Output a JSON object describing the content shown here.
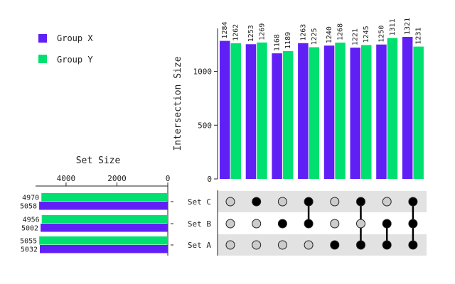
{
  "chart_data": {
    "type": "upset",
    "colors": {
      "group_x": "#6020f5",
      "group_y": "#00e070",
      "dot_active": "#000000",
      "dot_inactive": "#cccccc",
      "stripe": "#e2e2e2"
    },
    "legend": {
      "placement": "top-left",
      "entries": [
        "Group X",
        "Group Y"
      ]
    },
    "intersection_size": {
      "ylabel": "Intersection Size",
      "ylim": [
        0,
        1400
      ],
      "yticks": [
        "0",
        "500",
        "1000"
      ],
      "tick_values": [
        0,
        500,
        1000
      ],
      "series": [
        {
          "name": "Group X",
          "values": [
            1284,
            1253,
            1168,
            1263,
            1240,
            1221,
            1250,
            1321
          ]
        },
        {
          "name": "Group Y",
          "values": [
            1262,
            1269,
            1189,
            1225,
            1268,
            1245,
            1311,
            1231
          ]
        }
      ]
    },
    "set_size": {
      "title": "Set Size",
      "xlim": [
        0,
        5200
      ],
      "xticks": [
        "4000",
        "2000",
        "0"
      ],
      "tick_values": [
        4000,
        2000,
        0
      ],
      "sets": [
        {
          "name": "Set C",
          "group_y": 4970,
          "group_x": 5058
        },
        {
          "name": "Set B",
          "group_y": 4956,
          "group_x": 5002
        },
        {
          "name": "Set A",
          "group_y": 5055,
          "group_x": 5032
        }
      ]
    },
    "matrix": {
      "sets": [
        "Set C",
        "Set B",
        "Set A"
      ],
      "intersections": [
        {
          "C": false,
          "B": false,
          "A": false
        },
        {
          "C": true,
          "B": false,
          "A": false
        },
        {
          "C": false,
          "B": true,
          "A": false
        },
        {
          "C": true,
          "B": true,
          "A": false
        },
        {
          "C": false,
          "B": false,
          "A": true
        },
        {
          "C": true,
          "B": false,
          "A": true
        },
        {
          "C": false,
          "B": true,
          "A": true
        },
        {
          "C": true,
          "B": true,
          "A": true
        }
      ]
    }
  }
}
